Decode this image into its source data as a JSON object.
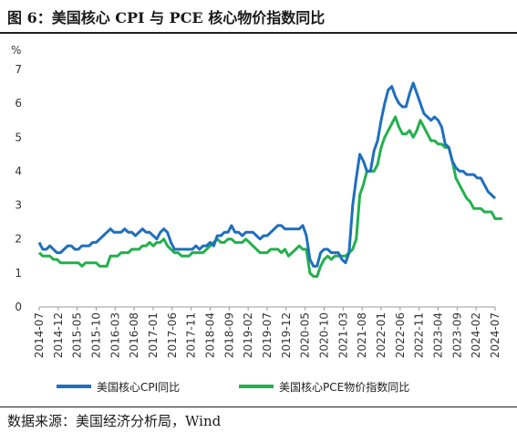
{
  "header": {
    "title": "图 6：美国核心 CPI 与 PCE 核心物价指数同比"
  },
  "footer": {
    "source": "数据来源：美国经济分析局，Wind"
  },
  "chart_data": {
    "type": "line",
    "title": "图 6：美国核心 CPI 与 PCE 核心物价指数同比",
    "xlabel": "",
    "ylabel": "%",
    "ylim": [
      0,
      7
    ],
    "yticks": [
      0,
      1,
      2,
      3,
      4,
      5,
      6,
      7
    ],
    "grid": false,
    "legend": "bottom",
    "x_start": "2014-07",
    "x_end": "2024-07",
    "x_tick_labels": [
      "2014-07",
      "2014-12",
      "2015-05",
      "2015-10",
      "2016-03",
      "2016-08",
      "2017-01",
      "2017-06",
      "2017-11",
      "2018-04",
      "2018-09",
      "2019-02",
      "2019-07",
      "2019-12",
      "2020-05",
      "2020-10",
      "2021-03",
      "2021-08",
      "2022-01",
      "2022-06",
      "2022-11",
      "2023-04",
      "2023-09",
      "2024-02",
      "2024-07"
    ],
    "series": [
      {
        "name": "美国核心CPI同比",
        "color": "#1f6fbf",
        "values": [
          1.9,
          1.7,
          1.7,
          1.8,
          1.7,
          1.6,
          1.6,
          1.7,
          1.8,
          1.8,
          1.7,
          1.7,
          1.8,
          1.8,
          1.8,
          1.9,
          1.9,
          2.0,
          2.1,
          2.2,
          2.3,
          2.2,
          2.2,
          2.2,
          2.3,
          2.2,
          2.2,
          2.1,
          2.2,
          2.3,
          2.2,
          2.2,
          2.1,
          2.0,
          2.2,
          2.3,
          2.2,
          1.9,
          1.7,
          1.7,
          1.7,
          1.7,
          1.7,
          1.7,
          1.8,
          1.7,
          1.8,
          1.8,
          1.9,
          1.8,
          2.1,
          2.1,
          2.2,
          2.2,
          2.4,
          2.2,
          2.2,
          2.1,
          2.2,
          2.2,
          2.2,
          2.1,
          2.0,
          2.1,
          2.1,
          2.2,
          2.3,
          2.4,
          2.4,
          2.3,
          2.3,
          2.3,
          2.3,
          2.3,
          2.4,
          2.1,
          1.4,
          1.2,
          1.2,
          1.6,
          1.7,
          1.7,
          1.6,
          1.6,
          1.6,
          1.4,
          1.3,
          1.6,
          3.0,
          3.8,
          4.5,
          4.3,
          4.0,
          4.0,
          4.6,
          4.9,
          5.5,
          6.0,
          6.4,
          6.5,
          6.2,
          6.0,
          5.9,
          5.9,
          6.3,
          6.6,
          6.3,
          6.0,
          5.7,
          5.6,
          5.5,
          5.6,
          5.5,
          5.3,
          4.8,
          4.7,
          4.3,
          4.1,
          4.0,
          4.0,
          3.9,
          3.9,
          3.9,
          3.8,
          3.8,
          3.6,
          3.4,
          3.3,
          3.2
        ]
      },
      {
        "name": "美国核心PCE物价指数同比",
        "color": "#22b14c",
        "values": [
          1.6,
          1.5,
          1.5,
          1.5,
          1.4,
          1.4,
          1.3,
          1.3,
          1.3,
          1.3,
          1.3,
          1.3,
          1.2,
          1.3,
          1.3,
          1.3,
          1.3,
          1.2,
          1.2,
          1.2,
          1.5,
          1.5,
          1.5,
          1.6,
          1.6,
          1.6,
          1.7,
          1.7,
          1.7,
          1.8,
          1.8,
          1.9,
          1.8,
          1.9,
          1.9,
          2.0,
          1.8,
          1.7,
          1.6,
          1.6,
          1.5,
          1.5,
          1.5,
          1.6,
          1.6,
          1.6,
          1.6,
          1.7,
          1.8,
          1.9,
          2.0,
          1.9,
          1.9,
          2.0,
          2.0,
          1.9,
          1.9,
          1.9,
          2.0,
          1.9,
          1.8,
          1.7,
          1.6,
          1.6,
          1.6,
          1.7,
          1.7,
          1.7,
          1.6,
          1.7,
          1.5,
          1.6,
          1.7,
          1.8,
          1.7,
          1.7,
          1.0,
          0.9,
          0.9,
          1.2,
          1.4,
          1.5,
          1.4,
          1.5,
          1.5,
          1.5,
          1.5,
          1.6,
          1.7,
          2.0,
          3.3,
          3.6,
          4.0,
          4.0,
          4.0,
          4.2,
          4.7,
          5.0,
          5.2,
          5.4,
          5.6,
          5.3,
          5.1,
          5.1,
          5.2,
          5.0,
          5.2,
          5.5,
          5.3,
          5.1,
          4.9,
          4.9,
          4.8,
          4.8,
          4.7,
          4.7,
          4.3,
          3.8,
          3.6,
          3.4,
          3.2,
          3.1,
          2.9,
          2.9,
          2.9,
          2.8,
          2.8,
          2.8,
          2.6,
          2.6,
          2.6
        ]
      }
    ]
  }
}
